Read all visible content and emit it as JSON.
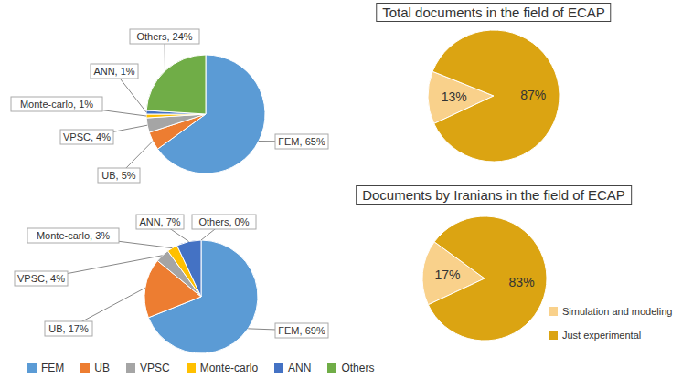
{
  "chart_data": [
    {
      "type": "pie",
      "categories": [
        "FEM",
        "UB",
        "VPSC",
        "Monte-carlo",
        "ANN",
        "Others"
      ],
      "values": [
        65,
        5,
        4,
        1,
        1,
        24
      ],
      "value_labels": [
        "FEM, 65%",
        "UB, 5%",
        "VPSC, 4%",
        "Monte-carlo, 1%",
        "ANN, 1%",
        "Others, 24%"
      ],
      "colors": [
        "#5b9bd5",
        "#ed7d31",
        "#a5a5a5",
        "#ffc000",
        "#4472c4",
        "#70ad47"
      ],
      "data_labels": true
    },
    {
      "type": "pie",
      "title": "Total documents in the field of ECAP",
      "categories": [
        "Simulation and modeling",
        "Just experimental"
      ],
      "values": [
        13,
        87
      ],
      "value_labels": [
        "13%",
        "87%"
      ],
      "colors": [
        "#f9d18b",
        "#dba412"
      ],
      "data_labels": true
    },
    {
      "type": "pie",
      "categories": [
        "FEM",
        "UB",
        "VPSC",
        "Monte-carlo",
        "ANN",
        "Others"
      ],
      "values": [
        69,
        17,
        4,
        3,
        7,
        0
      ],
      "value_labels": [
        "FEM, 69%",
        "UB, 17%",
        "VPSC, 4%",
        "Monte-carlo, 3%",
        "ANN, 7%",
        "Others, 0%"
      ],
      "colors": [
        "#5b9bd5",
        "#ed7d31",
        "#a5a5a5",
        "#ffc000",
        "#4472c4",
        "#70ad47"
      ],
      "data_labels": true,
      "legend": "bottom"
    },
    {
      "type": "pie",
      "title": "Documents by Iranians in the field of ECAP",
      "categories": [
        "Simulation and modeling",
        "Just experimental"
      ],
      "values": [
        17,
        83
      ],
      "value_labels": [
        "17%",
        "83%"
      ],
      "colors": [
        "#f9d18b",
        "#dba412"
      ],
      "data_labels": true,
      "legend": "right"
    }
  ]
}
